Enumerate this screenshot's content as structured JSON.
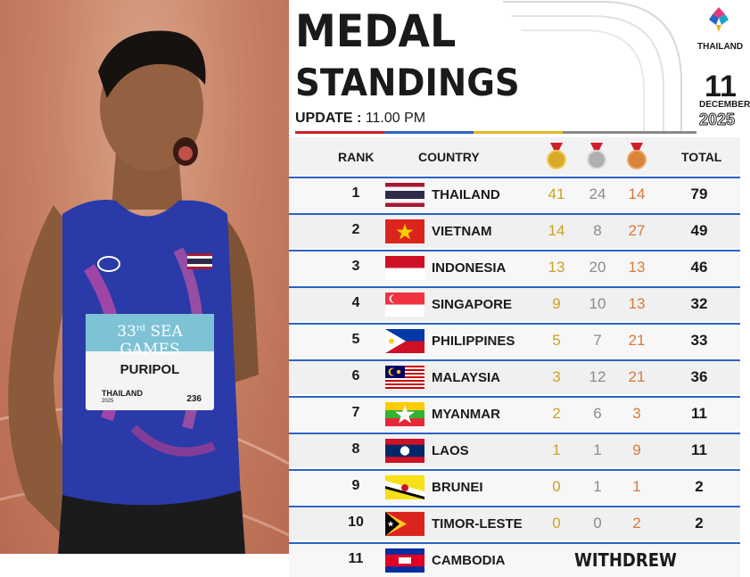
{
  "photo": {
    "bib_event": "SEA GAMES",
    "bib_edition": "33",
    "bib_ordinal": "rd",
    "bib_name": "PURIPOL",
    "bib_brand": "THAILAND",
    "bib_year": "2025",
    "bib_number": "236"
  },
  "header": {
    "title_line1": "MEDAL",
    "title_line2": "STANDINGS",
    "update_label": "UPDATE : ",
    "update_time": "11.00 PM",
    "logo_text": "THAILAND",
    "day": "11",
    "month": "DECEMBER",
    "year": "2025"
  },
  "table": {
    "col_rank": "RANK",
    "col_country": "COUNTRY",
    "col_total": "TOTAL",
    "rows": [
      {
        "rank": "1",
        "country": "THAILAND",
        "gold": "41",
        "silver": "24",
        "bronze": "14",
        "total": "79",
        "flag": "thailand"
      },
      {
        "rank": "2",
        "country": "VIETNAM",
        "gold": "14",
        "silver": "8",
        "bronze": "27",
        "total": "49",
        "flag": "vietnam"
      },
      {
        "rank": "3",
        "country": "INDONESIA",
        "gold": "13",
        "silver": "20",
        "bronze": "13",
        "total": "46",
        "flag": "indonesia"
      },
      {
        "rank": "4",
        "country": "SINGAPORE",
        "gold": "9",
        "silver": "10",
        "bronze": "13",
        "total": "32",
        "flag": "singapore"
      },
      {
        "rank": "5",
        "country": "PHILIPPINES",
        "gold": "5",
        "silver": "7",
        "bronze": "21",
        "total": "33",
        "flag": "philippines"
      },
      {
        "rank": "6",
        "country": "MALAYSIA",
        "gold": "3",
        "silver": "12",
        "bronze": "21",
        "total": "36",
        "flag": "malaysia"
      },
      {
        "rank": "7",
        "country": "MYANMAR",
        "gold": "2",
        "silver": "6",
        "bronze": "3",
        "total": "11",
        "flag": "myanmar"
      },
      {
        "rank": "8",
        "country": "LAOS",
        "gold": "1",
        "silver": "1",
        "bronze": "9",
        "total": "11",
        "flag": "laos"
      },
      {
        "rank": "9",
        "country": "BRUNEI",
        "gold": "0",
        "silver": "1",
        "bronze": "1",
        "total": "2",
        "flag": "brunei"
      },
      {
        "rank": "10",
        "country": "TIMOR-LESTE",
        "gold": "0",
        "silver": "0",
        "bronze": "2",
        "total": "2",
        "flag": "timor-leste"
      },
      {
        "rank": "11",
        "country": "CAMBODIA",
        "status": "WITHDREW",
        "flag": "cambodia"
      }
    ]
  },
  "colors": {
    "gold": "#c9a227",
    "silver": "#8b8b8b",
    "bronze": "#d67a3a",
    "divider": "#2b63c6"
  }
}
